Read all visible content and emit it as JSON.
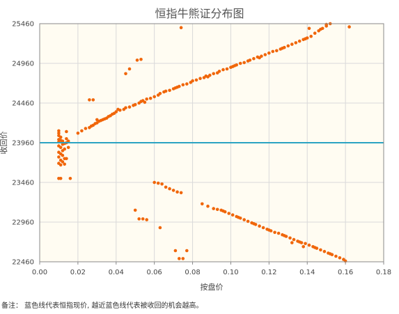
{
  "chart_data": {
    "type": "scatter",
    "title": "恒指牛熊证分布图",
    "xlabel": "按盘价",
    "ylabel": "收回价",
    "xlim": [
      0,
      0.18
    ],
    "ylim": [
      22460,
      25460
    ],
    "x_ticks": [
      "0.00",
      "0.02",
      "0.04",
      "0.06",
      "0.08",
      "0.10",
      "0.12",
      "0.14",
      "0.16",
      "0.18"
    ],
    "y_ticks": [
      "22460",
      "22960",
      "23460",
      "23960",
      "24460",
      "24960",
      "25460"
    ],
    "grid": true,
    "reference_line": {
      "y": 23960,
      "color": "#2ba3c2"
    },
    "point_color": "#f0660a",
    "plot_background": "#fffcf2",
    "series": [
      {
        "values": [
          [
            0.01,
            24110
          ],
          [
            0.01,
            24080
          ],
          [
            0.01,
            24050
          ],
          [
            0.011,
            24030
          ],
          [
            0.01,
            24000
          ],
          [
            0.011,
            23990
          ],
          [
            0.012,
            23980
          ],
          [
            0.01,
            23970
          ],
          [
            0.013,
            23950
          ],
          [
            0.012,
            23940
          ],
          [
            0.01,
            23920
          ],
          [
            0.011,
            23900
          ],
          [
            0.013,
            23880
          ],
          [
            0.012,
            23860
          ],
          [
            0.01,
            23840
          ],
          [
            0.011,
            23820
          ],
          [
            0.012,
            23800
          ],
          [
            0.01,
            23780
          ],
          [
            0.013,
            23760
          ],
          [
            0.011,
            23740
          ],
          [
            0.012,
            23720
          ],
          [
            0.01,
            23700
          ],
          [
            0.013,
            23690
          ],
          [
            0.011,
            23680
          ],
          [
            0.014,
            23960
          ],
          [
            0.014,
            24010
          ],
          [
            0.014,
            24100
          ],
          [
            0.015,
            23980
          ],
          [
            0.015,
            23900
          ],
          [
            0.014,
            23760
          ],
          [
            0.01,
            23510
          ],
          [
            0.011,
            23510
          ],
          [
            0.016,
            23510
          ],
          [
            0.012,
            23960
          ],
          [
            0.02,
            24080
          ],
          [
            0.022,
            24110
          ],
          [
            0.024,
            24140
          ],
          [
            0.026,
            24150
          ],
          [
            0.027,
            24170
          ],
          [
            0.028,
            24180
          ],
          [
            0.029,
            24200
          ],
          [
            0.03,
            24210
          ],
          [
            0.031,
            24230
          ],
          [
            0.032,
            24240
          ],
          [
            0.033,
            24250
          ],
          [
            0.034,
            24260
          ],
          [
            0.035,
            24270
          ],
          [
            0.036,
            24290
          ],
          [
            0.037,
            24300
          ],
          [
            0.038,
            24320
          ],
          [
            0.039,
            24330
          ],
          [
            0.04,
            24350
          ],
          [
            0.042,
            24370
          ],
          [
            0.044,
            24380
          ],
          [
            0.045,
            24400
          ],
          [
            0.047,
            24410
          ],
          [
            0.049,
            24430
          ],
          [
            0.05,
            24440
          ],
          [
            0.052,
            24460
          ],
          [
            0.053,
            24480
          ],
          [
            0.054,
            24490
          ],
          [
            0.056,
            24510
          ],
          [
            0.058,
            24520
          ],
          [
            0.06,
            24540
          ],
          [
            0.062,
            24560
          ],
          [
            0.063,
            24580
          ],
          [
            0.065,
            24600
          ],
          [
            0.066,
            24610
          ],
          [
            0.068,
            24620
          ],
          [
            0.07,
            24640
          ],
          [
            0.072,
            24660
          ],
          [
            0.073,
            24670
          ],
          [
            0.075,
            24690
          ],
          [
            0.077,
            24700
          ],
          [
            0.079,
            24720
          ],
          [
            0.08,
            24740
          ],
          [
            0.082,
            24750
          ],
          [
            0.084,
            24770
          ],
          [
            0.086,
            24780
          ],
          [
            0.087,
            24800
          ],
          [
            0.089,
            24810
          ],
          [
            0.091,
            24830
          ],
          [
            0.093,
            24840
          ],
          [
            0.094,
            24860
          ],
          [
            0.096,
            24880
          ],
          [
            0.098,
            24890
          ],
          [
            0.1,
            24910
          ],
          [
            0.102,
            24930
          ],
          [
            0.103,
            24940
          ],
          [
            0.105,
            24960
          ],
          [
            0.107,
            24970
          ],
          [
            0.109,
            24990
          ],
          [
            0.11,
            25000
          ],
          [
            0.112,
            25020
          ],
          [
            0.114,
            25040
          ],
          [
            0.116,
            25050
          ],
          [
            0.118,
            25070
          ],
          [
            0.12,
            25090
          ],
          [
            0.122,
            25110
          ],
          [
            0.124,
            25120
          ],
          [
            0.126,
            25140
          ],
          [
            0.128,
            25160
          ],
          [
            0.13,
            25180
          ],
          [
            0.132,
            25200
          ],
          [
            0.134,
            25220
          ],
          [
            0.136,
            25240
          ],
          [
            0.138,
            25260
          ],
          [
            0.14,
            25280
          ],
          [
            0.142,
            25300
          ],
          [
            0.144,
            25340
          ],
          [
            0.146,
            25370
          ],
          [
            0.148,
            25400
          ],
          [
            0.15,
            25430
          ],
          [
            0.152,
            25460
          ],
          [
            0.03,
            24250
          ],
          [
            0.041,
            24380
          ],
          [
            0.055,
            24470
          ],
          [
            0.071,
            24650
          ],
          [
            0.088,
            24790
          ],
          [
            0.101,
            24920
          ],
          [
            0.115,
            25030
          ],
          [
            0.127,
            25150
          ],
          [
            0.139,
            25270
          ],
          [
            0.147,
            25390
          ],
          [
            0.026,
            24500
          ],
          [
            0.028,
            24500
          ],
          [
            0.045,
            24830
          ],
          [
            0.047,
            24890
          ],
          [
            0.051,
            25000
          ],
          [
            0.053,
            25010
          ],
          [
            0.074,
            25410
          ],
          [
            0.141,
            25400
          ],
          [
            0.15,
            25450
          ],
          [
            0.162,
            25420
          ],
          [
            0.06,
            23460
          ],
          [
            0.062,
            23450
          ],
          [
            0.064,
            23440
          ],
          [
            0.066,
            23400
          ],
          [
            0.068,
            23380
          ],
          [
            0.07,
            23360
          ],
          [
            0.072,
            23340
          ],
          [
            0.074,
            23330
          ],
          [
            0.085,
            23190
          ],
          [
            0.088,
            23160
          ],
          [
            0.091,
            23130
          ],
          [
            0.093,
            23120
          ],
          [
            0.095,
            23110
          ],
          [
            0.097,
            23090
          ],
          [
            0.099,
            23070
          ],
          [
            0.101,
            23050
          ],
          [
            0.103,
            23030
          ],
          [
            0.105,
            23010
          ],
          [
            0.107,
            22990
          ],
          [
            0.109,
            22970
          ],
          [
            0.111,
            22950
          ],
          [
            0.113,
            22930
          ],
          [
            0.115,
            22910
          ],
          [
            0.117,
            22890
          ],
          [
            0.119,
            22870
          ],
          [
            0.121,
            22850
          ],
          [
            0.123,
            22830
          ],
          [
            0.125,
            22820
          ],
          [
            0.127,
            22800
          ],
          [
            0.129,
            22780
          ],
          [
            0.131,
            22760
          ],
          [
            0.133,
            22740
          ],
          [
            0.135,
            22720
          ],
          [
            0.137,
            22700
          ],
          [
            0.139,
            22690
          ],
          [
            0.141,
            22670
          ],
          [
            0.143,
            22650
          ],
          [
            0.145,
            22630
          ],
          [
            0.147,
            22610
          ],
          [
            0.149,
            22590
          ],
          [
            0.151,
            22570
          ],
          [
            0.153,
            22550
          ],
          [
            0.155,
            22530
          ],
          [
            0.157,
            22510
          ],
          [
            0.159,
            22490
          ],
          [
            0.16,
            22470
          ],
          [
            0.096,
            23100
          ],
          [
            0.104,
            23020
          ],
          [
            0.112,
            22940
          ],
          [
            0.12,
            22860
          ],
          [
            0.128,
            22790
          ],
          [
            0.136,
            22710
          ],
          [
            0.144,
            22640
          ],
          [
            0.152,
            22560
          ],
          [
            0.05,
            23110
          ],
          [
            0.052,
            23000
          ],
          [
            0.054,
            23000
          ],
          [
            0.056,
            22990
          ],
          [
            0.063,
            22890
          ],
          [
            0.071,
            22600
          ],
          [
            0.073,
            22500
          ],
          [
            0.075,
            22500
          ],
          [
            0.077,
            22600
          ],
          [
            0.132,
            22700
          ],
          [
            0.138,
            22650
          ]
        ]
      }
    ]
  },
  "footer_note": "备注： 蓝色线代表恒指现价, 越近蓝色线代表被收回的机会越高。"
}
